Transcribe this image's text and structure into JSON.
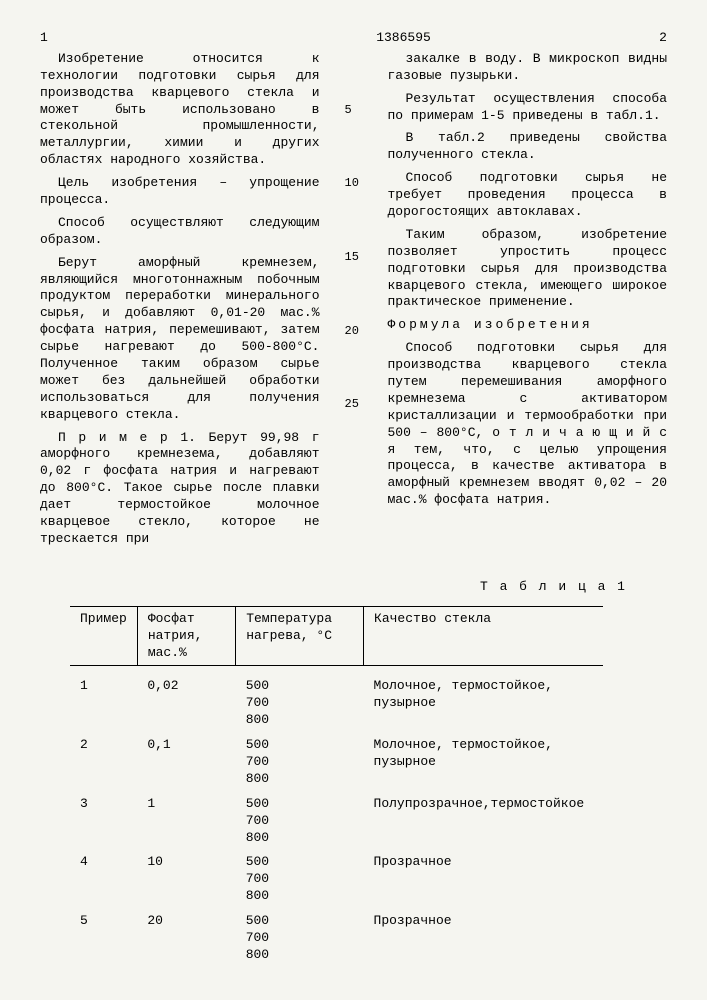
{
  "page_left": "1",
  "doc_number": "1386595",
  "page_right": "2",
  "col1": {
    "p1": "Изобретение относится к технологии подготовки сырья для производства кварцевого стекла и может быть использовано в стекольной промышленности, металлургии, химии и других областях народного хозяйства.",
    "p2": "Цель изобретения – упрощение процесса.",
    "p3": "Способ осуществляют следующим образом.",
    "p4": "Берут аморфный кремнезем, являющийся многотоннажным побочным продуктом переработки минерального сырья, и добавляют 0,01-20 мас.% фосфата натрия, перемешивают, затем сырье нагревают до 500-800°С. Полученное таким образом сырье может без дальнейшей обработки использоваться для получения кварцевого стекла.",
    "p5": "П р и м е р 1. Берут 99,98 г аморфного кремнезема, добавляют 0,02 г фосфата натрия и нагревают до 800°С. Такое сырье после плавки дает термостойкое молочное кварцевое стекло, которое не трескается при"
  },
  "col2": {
    "p1": "закалке в воду. В микроскоп видны газовые пузырьки.",
    "p2": "Результат осуществления способа по примерам 1-5 приведены в табл.1.",
    "p3": "В табл.2 приведены свойства полученного стекла.",
    "p4": "Способ подготовки сырья не требует проведения процесса в дорогостоящих автоклавах.",
    "p5": "Таким образом, изобретение позволяет упростить процесс подготовки сырья для производства кварцевого стекла, имеющего широкое практическое применение.",
    "formula_title": "Формула изобретения",
    "p6": "Способ подготовки сырья для производства кварцевого стекла путем перемешивания аморфного кремнезема с активатором кристаллизации и термообработки при 500 – 800°С, о т л и ч а ю щ и й с я  тем, что, с целью упрощения процесса, в качестве активатора в аморфный кремнезем вводят 0,02 – 20 мас.% фосфата натрия."
  },
  "line_nums": [
    "5",
    "10",
    "15",
    "20",
    "25"
  ],
  "table": {
    "title": "Т а б л и ц а 1",
    "headers": [
      "Пример",
      "Фосфат натрия, мас.%",
      "Температура нагрева, °С",
      "Качество стекла"
    ],
    "rows": [
      {
        "n": "1",
        "pct": "0,02",
        "t": [
          "500",
          "700",
          "800"
        ],
        "q": "Молочное, термостойкое, пузырное"
      },
      {
        "n": "2",
        "pct": "0,1",
        "t": [
          "500",
          "700",
          "800"
        ],
        "q": "Молочное, термостойкое, пузырное"
      },
      {
        "n": "3",
        "pct": "1",
        "t": [
          "500",
          "700",
          "800"
        ],
        "q": "Полупрозрачное,термостойкое"
      },
      {
        "n": "4",
        "pct": "10",
        "t": [
          "500",
          "700",
          "800"
        ],
        "q": "Прозрачное"
      },
      {
        "n": "5",
        "pct": "20",
        "t": [
          "500",
          "700",
          "800"
        ],
        "q": "Прозрачное"
      }
    ]
  },
  "colors": {
    "bg": "#f5f5f0",
    "text": "#000000",
    "border": "#000000"
  }
}
